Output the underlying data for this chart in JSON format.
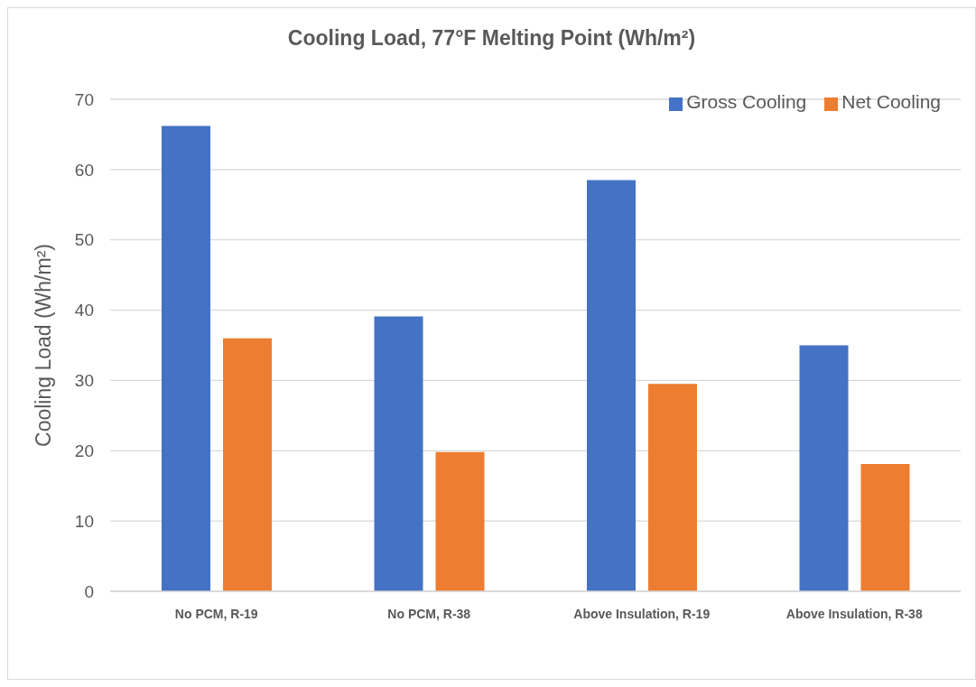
{
  "chart_data": {
    "type": "bar",
    "title": "Cooling Load, 77°F Melting Point (Wh/m²)",
    "ylabel": "Cooling Load (Wh/m²)",
    "categories": [
      "No PCM, R-19",
      "No PCM, R-38",
      "Above Insulation, R-19",
      "Above Insulation, R-38"
    ],
    "series": [
      {
        "name": "Gross Cooling",
        "color": "#4472c4",
        "values": [
          66.2,
          39.1,
          58.5,
          35.0
        ]
      },
      {
        "name": "Net Cooling",
        "color": "#ed7d31",
        "values": [
          36.0,
          19.8,
          29.5,
          18.1
        ]
      }
    ],
    "ylim": [
      0,
      70
    ],
    "yticks": [
      0,
      10,
      20,
      30,
      40,
      50,
      60,
      70
    ],
    "grid": "y",
    "legend": "top right"
  }
}
